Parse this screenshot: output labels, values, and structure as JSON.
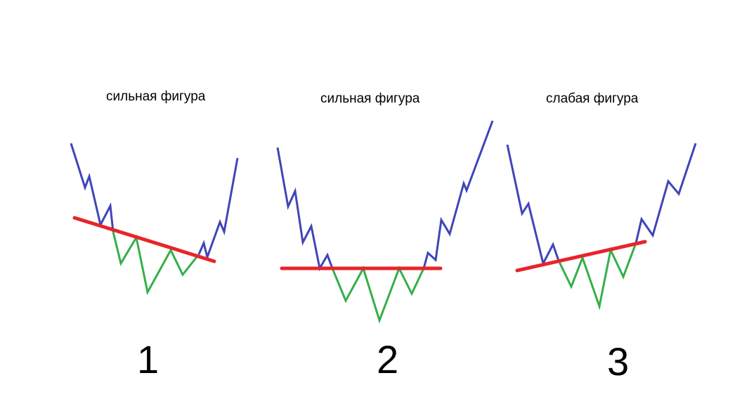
{
  "figures": [
    {
      "caption": "сильная фигура",
      "number": "1"
    },
    {
      "caption": "сильная фигура",
      "number": "2"
    },
    {
      "caption": "слабая фигура",
      "number": "3"
    }
  ],
  "colors": {
    "price_line": "#3f45b8",
    "pattern_line": "#33b04a",
    "neckline": "#e8242b"
  }
}
